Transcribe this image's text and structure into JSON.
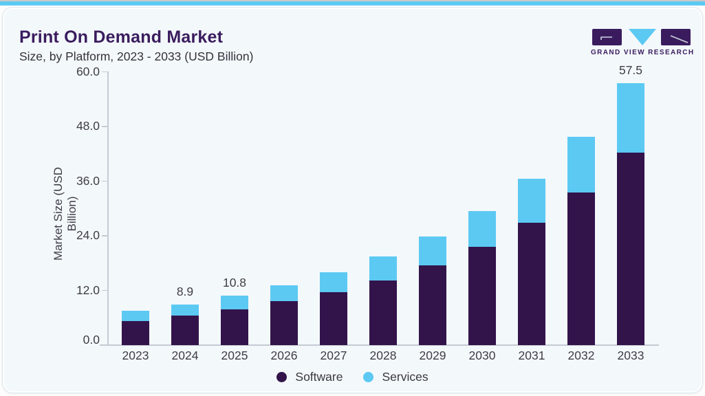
{
  "header": {
    "title": "Print On Demand Market",
    "subtitle": "Size, by Platform, 2023 - 2033 (USD Billion)"
  },
  "brand": {
    "name": "GRAND VIEW RESEARCH",
    "logo_icon": "gvr-logo"
  },
  "chart_data": {
    "type": "bar",
    "stacked": true,
    "title": "Print On Demand Market Size, by Platform, 2023 - 2033 (USD Billion)",
    "xlabel": "",
    "ylabel": "Market Size (USD Billion)",
    "ylim": [
      0,
      60
    ],
    "ytick_values": [
      0,
      12,
      24,
      36,
      48,
      60
    ],
    "ytick_labels": [
      "0.0",
      "12.0",
      "24.0",
      "36.0",
      "48.0",
      "60.0"
    ],
    "grid": false,
    "legend_position": "bottom",
    "categories": [
      "2023",
      "2024",
      "2025",
      "2026",
      "2027",
      "2028",
      "2029",
      "2030",
      "2031",
      "2032",
      "2033"
    ],
    "series": [
      {
        "name": "Software",
        "color": "#32144b",
        "values": [
          5.3,
          6.5,
          7.9,
          9.7,
          11.6,
          14.2,
          17.5,
          21.6,
          26.9,
          33.5,
          42.3
        ]
      },
      {
        "name": "Services",
        "color": "#5cc9f3",
        "values": [
          2.3,
          2.4,
          2.9,
          3.4,
          4.4,
          5.3,
          6.4,
          7.9,
          9.7,
          12.3,
          15.2
        ]
      }
    ],
    "totals": [
      7.6,
      8.9,
      10.8,
      13.1,
      16.0,
      19.5,
      23.9,
      29.5,
      36.6,
      45.8,
      57.5
    ],
    "bar_labels": [
      "",
      "8.9",
      "10.8",
      "",
      "",
      "",
      "",
      "",
      "",
      "",
      "57.5"
    ]
  },
  "colors": {
    "accent_blue": "#5cc9f3",
    "bar_purple": "#32144b",
    "brand_purple": "#3a1c5e",
    "card_bg": "#f3f8fb",
    "axis_line": "#c6cbd3",
    "text_dark": "#3f3d47"
  }
}
